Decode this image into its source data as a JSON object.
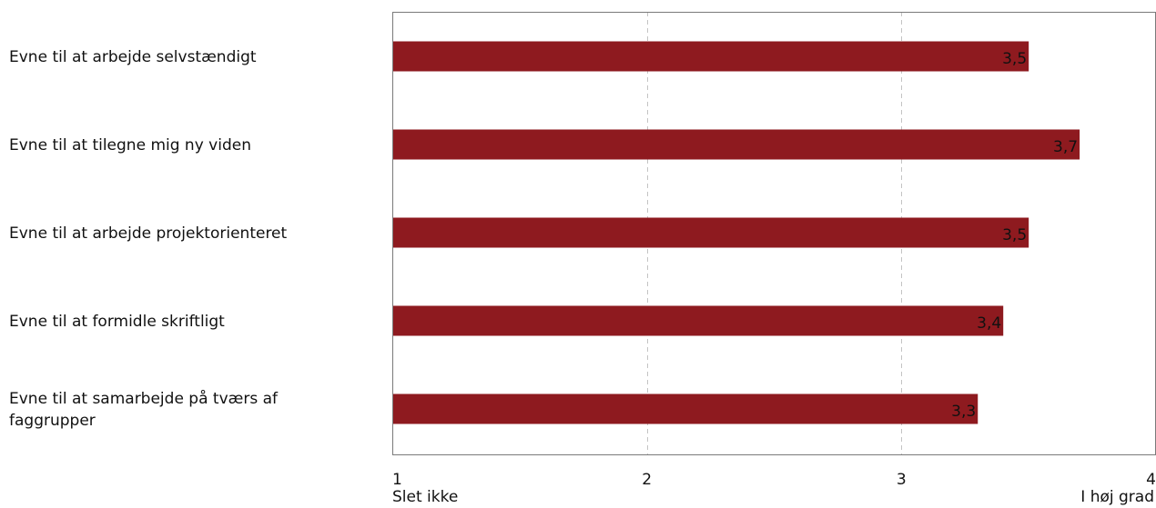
{
  "chart_data": {
    "type": "bar",
    "orientation": "horizontal",
    "categories": [
      "Evne til at arbejde selvstændigt",
      "Evne til at tilegne mig ny viden",
      "Evne til at arbejde projektorienteret",
      "Evne til at formidle skriftligt",
      "Evne til at samarbejde på tværs af faggrupper"
    ],
    "category_lines": [
      [
        "Evne til at arbejde selvstændigt"
      ],
      [
        "Evne til at tilegne mig ny viden"
      ],
      [
        "Evne til at arbejde projektorienteret"
      ],
      [
        "Evne til at formidle skriftligt"
      ],
      [
        "Evne til at samarbejde på tværs af",
        "faggrupper"
      ]
    ],
    "values": [
      3.5,
      3.7,
      3.5,
      3.4,
      3.3
    ],
    "value_labels": [
      "3,5",
      "3,7",
      "3,5",
      "3,4",
      "3,3"
    ],
    "xlim": [
      1,
      4
    ],
    "ticks": [
      "1",
      "2",
      "3",
      "4"
    ],
    "scale_labels": {
      "min": "Slet ikke",
      "max": "I høj grad"
    },
    "bar_color": "#8e1a1f",
    "grid": "vertical dashed",
    "title": "",
    "xlabel": "",
    "ylabel": ""
  }
}
